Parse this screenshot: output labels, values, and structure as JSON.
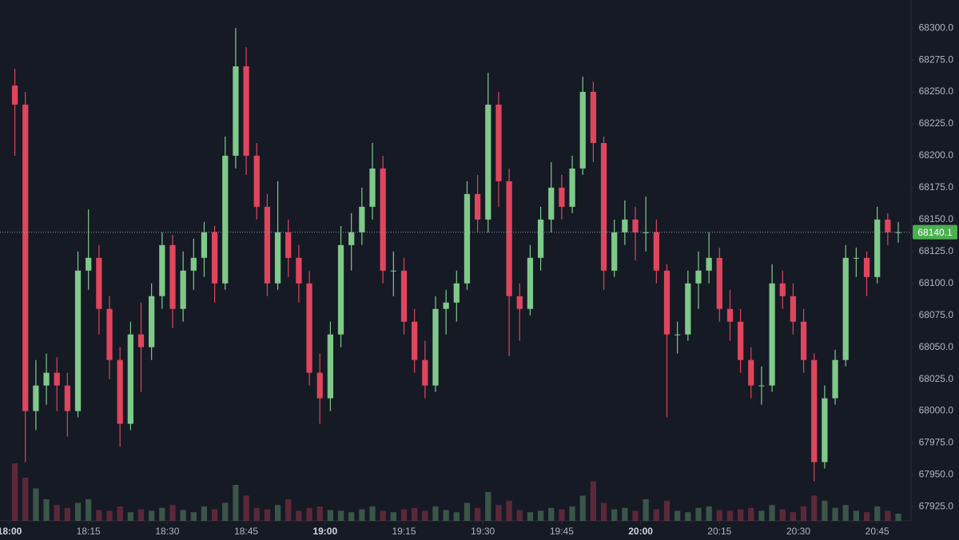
{
  "chart_data": {
    "type": "candlestick",
    "x": [
      "18:00",
      "18:02",
      "18:04",
      "18:06",
      "18:08",
      "18:10",
      "18:12",
      "18:14",
      "18:16",
      "18:18",
      "18:20",
      "18:22",
      "18:24",
      "18:26",
      "18:28",
      "18:30",
      "18:32",
      "18:34",
      "18:36",
      "18:38",
      "18:40",
      "18:42",
      "18:44",
      "18:46",
      "18:48",
      "18:50",
      "18:52",
      "18:54",
      "18:56",
      "18:58",
      "19:00",
      "19:02",
      "19:04",
      "19:06",
      "19:08",
      "19:10",
      "19:12",
      "19:14",
      "19:16",
      "19:18",
      "19:20",
      "19:22",
      "19:24",
      "19:26",
      "19:28",
      "19:30",
      "19:32",
      "19:34",
      "19:36",
      "19:38",
      "19:40",
      "19:42",
      "19:44",
      "19:46",
      "19:48",
      "19:50",
      "19:52",
      "19:54",
      "19:56",
      "19:58",
      "20:00",
      "20:02",
      "20:04",
      "20:06",
      "20:08",
      "20:10",
      "20:12",
      "20:14",
      "20:16",
      "20:18",
      "20:20",
      "20:22",
      "20:24",
      "20:26",
      "20:28",
      "20:30",
      "20:32",
      "20:34",
      "20:36",
      "20:38",
      "20:40",
      "20:42",
      "20:44",
      "20:46",
      "20:48"
    ],
    "open": [
      68255,
      68240,
      68000,
      68020,
      68030,
      68020,
      68000,
      68110,
      68120,
      68080,
      68040,
      67990,
      68060,
      68050,
      68090,
      68130,
      68080,
      68110,
      68120,
      68140,
      68100,
      68200,
      68270,
      68200,
      68160,
      68100,
      68140,
      68120,
      68100,
      68030,
      68010,
      68060,
      68130,
      68140,
      68160,
      68190,
      68110,
      68110,
      68070,
      68040,
      68020,
      68080,
      68085,
      68100,
      68170,
      68150,
      68240,
      68180,
      68090,
      68080,
      68120,
      68150,
      68175,
      68160,
      68190,
      68250,
      68210,
      68110,
      68140,
      68150,
      68140,
      68140,
      68110,
      68060,
      68060,
      68100,
      68110,
      68120,
      68080,
      68070,
      68040,
      68020,
      68020,
      68100,
      68090,
      68070,
      68040,
      67960,
      68010,
      68040,
      68120,
      68120,
      68105,
      68150,
      68140
    ],
    "high": [
      68268,
      68250,
      68040,
      68045,
      68042,
      68030,
      68125,
      68158,
      68130,
      68090,
      68050,
      68070,
      68085,
      68100,
      68140,
      68138,
      68125,
      68135,
      68148,
      68145,
      68215,
      68300,
      68285,
      68210,
      68170,
      68180,
      68150,
      68130,
      68110,
      68045,
      68070,
      68145,
      68155,
      68175,
      68210,
      68200,
      68125,
      68120,
      68080,
      68055,
      68090,
      68095,
      68110,
      68180,
      68185,
      68265,
      68250,
      68190,
      68100,
      68130,
      68160,
      68195,
      68185,
      68200,
      68262,
      68258,
      68215,
      68150,
      68165,
      68160,
      68168,
      68150,
      68115,
      68070,
      68110,
      68125,
      68140,
      68128,
      68095,
      68080,
      68050,
      68035,
      68115,
      68110,
      68100,
      68080,
      68045,
      68020,
      68048,
      68130,
      68128,
      68125,
      68160,
      68155,
      68148
    ],
    "low": [
      68200,
      67960,
      67985,
      68005,
      68000,
      67980,
      67995,
      68095,
      68060,
      68025,
      67972,
      67985,
      68015,
      68040,
      68080,
      68065,
      68070,
      68095,
      68105,
      68085,
      68095,
      68190,
      68185,
      68150,
      68090,
      68095,
      68105,
      68085,
      68020,
      67990,
      68000,
      68050,
      68110,
      68130,
      68150,
      68100,
      68090,
      68060,
      68030,
      68010,
      68015,
      68060,
      68070,
      68095,
      68140,
      68140,
      68160,
      68043,
      68055,
      68075,
      68110,
      68140,
      68150,
      68155,
      68185,
      68195,
      68095,
      68105,
      68130,
      68118,
      68125,
      68100,
      67995,
      68045,
      68055,
      68080,
      68100,
      68070,
      68055,
      68030,
      68010,
      68005,
      68015,
      68080,
      68060,
      68030,
      67945,
      67955,
      68005,
      68035,
      68105,
      68090,
      68100,
      68130,
      68132
    ],
    "close": [
      68240,
      68000,
      68020,
      68030,
      68020,
      68000,
      68110,
      68120,
      68080,
      68040,
      67990,
      68060,
      68050,
      68090,
      68130,
      68080,
      68110,
      68120,
      68140,
      68100,
      68200,
      68270,
      68200,
      68160,
      68100,
      68140,
      68120,
      68100,
      68030,
      68010,
      68060,
      68130,
      68140,
      68160,
      68190,
      68110,
      68110,
      68070,
      68040,
      68020,
      68080,
      68085,
      68100,
      68170,
      68150,
      68240,
      68180,
      68090,
      68080,
      68120,
      68150,
      68175,
      68160,
      68190,
      68250,
      68210,
      68110,
      68140,
      68150,
      68140,
      68140,
      68110,
      68060,
      68060,
      68100,
      68110,
      68120,
      68080,
      68070,
      68040,
      68020,
      68020,
      68100,
      68090,
      68070,
      68040,
      67960,
      68010,
      68040,
      68120,
      68120,
      68105,
      68150,
      68140,
      68140.1
    ],
    "volume": [
      80,
      60,
      45,
      30,
      22,
      18,
      25,
      30,
      15,
      14,
      20,
      12,
      16,
      14,
      18,
      22,
      15,
      12,
      20,
      16,
      25,
      50,
      35,
      18,
      16,
      22,
      30,
      14,
      18,
      20,
      15,
      14,
      12,
      16,
      20,
      14,
      12,
      16,
      18,
      14,
      20,
      15,
      12,
      25,
      18,
      40,
      22,
      28,
      15,
      12,
      14,
      18,
      16,
      20,
      35,
      55,
      25,
      16,
      18,
      14,
      30,
      16,
      28,
      14,
      12,
      18,
      20,
      15,
      14,
      16,
      18,
      14,
      22,
      16,
      12,
      20,
      35,
      28,
      18,
      22,
      14,
      12,
      20,
      14,
      10
    ],
    "volume_lim": [
      0,
      100
    ],
    "ylim": [
      67914,
      68322
    ],
    "yticks": [
      {
        "value": 67925,
        "label": "67925.0"
      },
      {
        "value": 67950,
        "label": "67950.0"
      },
      {
        "value": 67975,
        "label": "67975.0"
      },
      {
        "value": 68000,
        "label": "68000.0"
      },
      {
        "value": 68025,
        "label": "68025.0"
      },
      {
        "value": 68050,
        "label": "68050.0"
      },
      {
        "value": 68075,
        "label": "68075.0"
      },
      {
        "value": 68100,
        "label": "68100.0"
      },
      {
        "value": 68125,
        "label": "68125.0"
      },
      {
        "value": 68150,
        "label": "68150.0"
      },
      {
        "value": 68175,
        "label": "68175.0"
      },
      {
        "value": 68200,
        "label": "68200.0"
      },
      {
        "value": 68225,
        "label": "68225.0"
      },
      {
        "value": 68250,
        "label": "68250.0"
      },
      {
        "value": 68275,
        "label": "68275.0"
      },
      {
        "value": 68300,
        "label": "68300.0"
      }
    ],
    "xticks": [
      "18:00",
      "18:15",
      "18:30",
      "18:45",
      "19:00",
      "19:15",
      "19:30",
      "19:45",
      "20:00",
      "20:15",
      "20:30",
      "20:45"
    ],
    "last_price": 68140.1,
    "up_color": "#7fc98a",
    "down_color": "#e0455e"
  }
}
